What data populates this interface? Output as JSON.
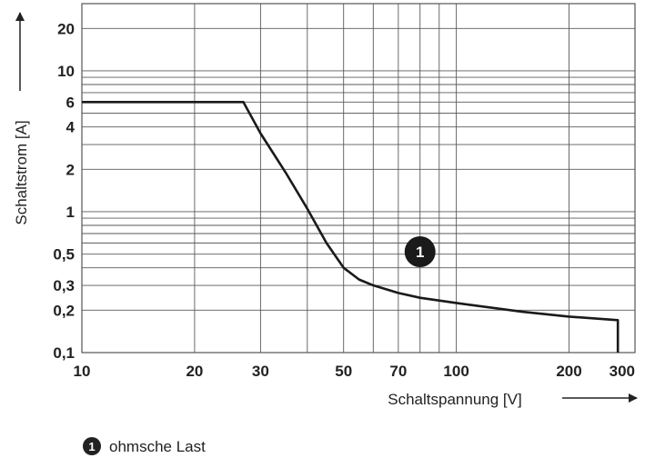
{
  "chart_data": {
    "type": "line",
    "xscale": "log",
    "yscale": "log",
    "xlim": [
      10,
      300
    ],
    "ylim": [
      0.1,
      30
    ],
    "grid": true,
    "xlabel": "Schaltspannung [V]",
    "ylabel": "Schaltstrom [A]",
    "x_ticks": [
      10,
      20,
      30,
      50,
      70,
      100,
      200,
      300
    ],
    "x_tick_labels": [
      "10",
      "20",
      "30",
      "50",
      "70",
      "100",
      "200",
      "300"
    ],
    "y_ticks": [
      0.1,
      0.2,
      0.3,
      0.5,
      1,
      2,
      4,
      6,
      10,
      20
    ],
    "y_tick_labels": [
      "0,1",
      "0,2",
      "0,3",
      "0,5",
      "1",
      "2",
      "4",
      "6",
      "10",
      "20"
    ],
    "x_gridlines": [
      10,
      20,
      30,
      40,
      50,
      60,
      70,
      80,
      90,
      100,
      200,
      300
    ],
    "y_gridlines": [
      0.1,
      0.2,
      0.3,
      0.4,
      0.5,
      0.6,
      0.7,
      0.8,
      0.9,
      1,
      2,
      3,
      4,
      5,
      6,
      7,
      8,
      9,
      10,
      20,
      30
    ],
    "series": [
      {
        "points": [
          [
            10,
            6
          ],
          [
            27,
            6
          ],
          [
            30,
            3.6
          ],
          [
            35,
            1.9
          ],
          [
            40,
            1.05
          ],
          [
            45,
            0.6
          ],
          [
            50,
            0.4
          ],
          [
            55,
            0.33
          ],
          [
            60,
            0.3
          ],
          [
            70,
            0.265
          ],
          [
            80,
            0.245
          ],
          [
            100,
            0.225
          ],
          [
            150,
            0.195
          ],
          [
            200,
            0.18
          ],
          [
            270,
            0.17
          ],
          [
            270,
            0.1
          ]
        ]
      }
    ],
    "annotations": [
      {
        "label": "1",
        "x": 80,
        "y": 0.52
      }
    ],
    "legend": {
      "marker": "1",
      "text": "ohmsche Last",
      "placement": "bottom-left"
    }
  }
}
